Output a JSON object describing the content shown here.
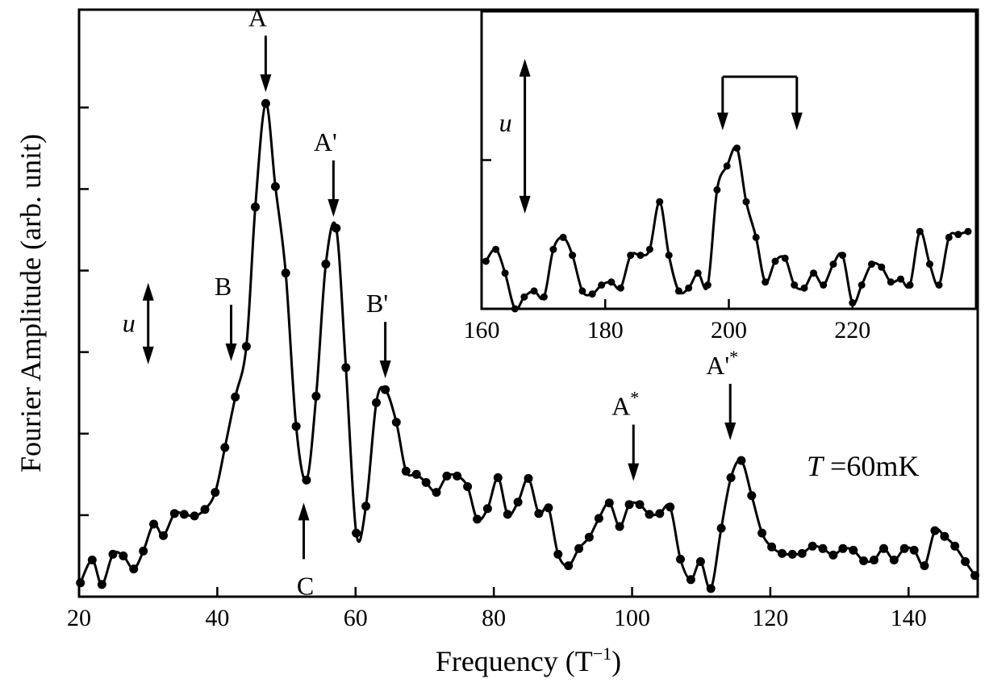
{
  "chart_data": [
    {
      "type": "line",
      "xlabel": "Frequency (T",
      "xlabel_sup": "−1",
      "xlabel_end": ")",
      "ylabel": "Fourier Amplitude (arb. unit)",
      "xlim": [
        20,
        150
      ],
      "ylim": [
        0,
        7.2
      ],
      "xticks": [
        20,
        40,
        60,
        80,
        100,
        120,
        140
      ],
      "xtick_labels": [
        "20",
        "40",
        "60",
        "80",
        "100",
        "120",
        "140"
      ],
      "yticks": [
        1,
        2,
        3,
        4,
        5,
        6
      ],
      "grid": false,
      "legend": "none",
      "x": [
        20.2,
        21.9,
        23.3,
        24.9,
        26.4,
        27.9,
        29.3,
        30.8,
        32.2,
        33.8,
        35.2,
        36.7,
        38.2,
        39.7,
        41.1,
        42.6,
        44.2,
        45.5,
        47.0,
        48.4,
        49.9,
        51.4,
        52.9,
        54.3,
        55.7,
        57.2,
        58.6,
        60.1,
        61.5,
        63.0,
        64.3,
        65.9,
        67.3,
        68.8,
        70.2,
        71.7,
        73.2,
        74.7,
        76.2,
        77.6,
        79.1,
        80.6,
        82.0,
        83.5,
        85.0,
        86.5,
        87.9,
        89.3,
        90.8,
        92.3,
        93.8,
        95.2,
        96.7,
        98.2,
        99.6,
        101.1,
        102.5,
        104.0,
        105.5,
        107.0,
        108.5,
        109.9,
        111.4,
        112.9,
        114.3,
        115.8,
        117.3,
        118.8,
        120.2,
        121.7,
        123.2,
        124.6,
        126.1,
        127.6,
        129.1,
        130.5,
        132.0,
        133.5,
        135.0,
        136.4,
        137.9,
        139.4,
        140.8,
        142.3,
        143.8,
        145.2,
        146.7,
        148.2,
        149.6
      ],
      "y": [
        0.17,
        0.45,
        0.15,
        0.52,
        0.5,
        0.34,
        0.56,
        0.89,
        0.75,
        1.02,
        1.01,
        0.99,
        1.07,
        1.28,
        1.83,
        2.45,
        3.07,
        4.78,
        6.05,
        5.03,
        3.97,
        2.09,
        1.43,
        2.46,
        4.08,
        4.52,
        2.81,
        0.78,
        1.11,
        2.38,
        2.54,
        2.14,
        1.54,
        1.5,
        1.4,
        1.28,
        1.48,
        1.48,
        1.35,
        0.95,
        1.08,
        1.46,
        1.01,
        1.16,
        1.45,
        1.02,
        1.09,
        0.52,
        0.38,
        0.59,
        0.73,
        0.96,
        1.15,
        0.86,
        1.13,
        1.13,
        1.01,
        1.02,
        1.1,
        0.46,
        0.21,
        0.43,
        0.1,
        0.84,
        1.46,
        1.67,
        1.24,
        0.78,
        0.61,
        0.53,
        0.52,
        0.53,
        0.62,
        0.59,
        0.51,
        0.59,
        0.57,
        0.44,
        0.45,
        0.59,
        0.45,
        0.59,
        0.57,
        0.38,
        0.81,
        0.74,
        0.62,
        0.43,
        0.26
      ],
      "annotations": [
        {
          "label": "A",
          "sup": "",
          "x": 47.0,
          "y": 6.05,
          "direction": "down"
        },
        {
          "label": "A'",
          "sup": "",
          "x": 56.8,
          "y": 4.52,
          "direction": "down"
        },
        {
          "label": "B",
          "sup": "",
          "x": 42.0,
          "y": 2.75,
          "direction": "down"
        },
        {
          "label": "B'",
          "sup": "",
          "x": 64.3,
          "y": 2.54,
          "direction": "down"
        },
        {
          "label": "C",
          "sup": "",
          "x": 52.5,
          "y": 1.43,
          "direction": "up"
        },
        {
          "label": "A",
          "sup": "*",
          "x": 100.2,
          "y": 1.28,
          "direction": "down"
        },
        {
          "label": "A'",
          "sup": "*",
          "x": 114.2,
          "y": 1.78,
          "direction": "down"
        }
      ],
      "scale_bar": {
        "label": "u",
        "x": 30,
        "y_from": 2.85,
        "y_to": 3.85
      },
      "temperature": {
        "symbol": "T",
        "value": " =60mK"
      }
    },
    {
      "type": "line",
      "xlim": [
        160,
        240
      ],
      "ylim": [
        0,
        5
      ],
      "xticks": [
        160,
        180,
        200,
        220
      ],
      "xtick_labels": [
        "160",
        "180",
        "200",
        "220"
      ],
      "yticks": [
        2.5
      ],
      "grid": false,
      "legend": "none",
      "x": [
        160.7,
        162.3,
        163.8,
        165.4,
        166.9,
        168.5,
        170.1,
        171.6,
        173.2,
        174.7,
        176.3,
        177.9,
        179.4,
        181.0,
        182.5,
        184.1,
        185.7,
        187.2,
        188.8,
        190.3,
        191.9,
        193.5,
        195.0,
        196.6,
        198.1,
        199.7,
        201.3,
        202.8,
        204.4,
        205.9,
        207.5,
        209.1,
        210.6,
        212.2,
        213.7,
        215.3,
        216.9,
        218.4,
        220.0,
        221.5,
        223.1,
        224.7,
        226.2,
        227.8,
        229.3,
        230.9,
        232.5,
        234.0,
        235.6,
        237.1,
        238.7
      ],
      "y": [
        0.8,
        1.0,
        0.6,
        0.0,
        0.2,
        0.3,
        0.2,
        1.0,
        1.2,
        0.9,
        0.3,
        0.25,
        0.4,
        0.45,
        0.35,
        0.9,
        0.9,
        1.0,
        1.8,
        0.9,
        0.3,
        0.35,
        0.6,
        0.4,
        2.0,
        2.4,
        2.7,
        1.8,
        1.2,
        0.45,
        0.8,
        0.85,
        0.4,
        0.35,
        0.6,
        0.4,
        0.75,
        0.9,
        0.1,
        0.4,
        0.75,
        0.7,
        0.45,
        0.5,
        0.4,
        1.3,
        0.75,
        0.4,
        1.2,
        1.25,
        1.3
      ],
      "scale_bar": {
        "label": "u",
        "x": 167,
        "y_from": 1.6,
        "y_to": 4.2
      },
      "bracket": {
        "x_from": 199,
        "x_to": 211,
        "y_top": 3.9,
        "y_bottom": 3.0
      }
    }
  ]
}
